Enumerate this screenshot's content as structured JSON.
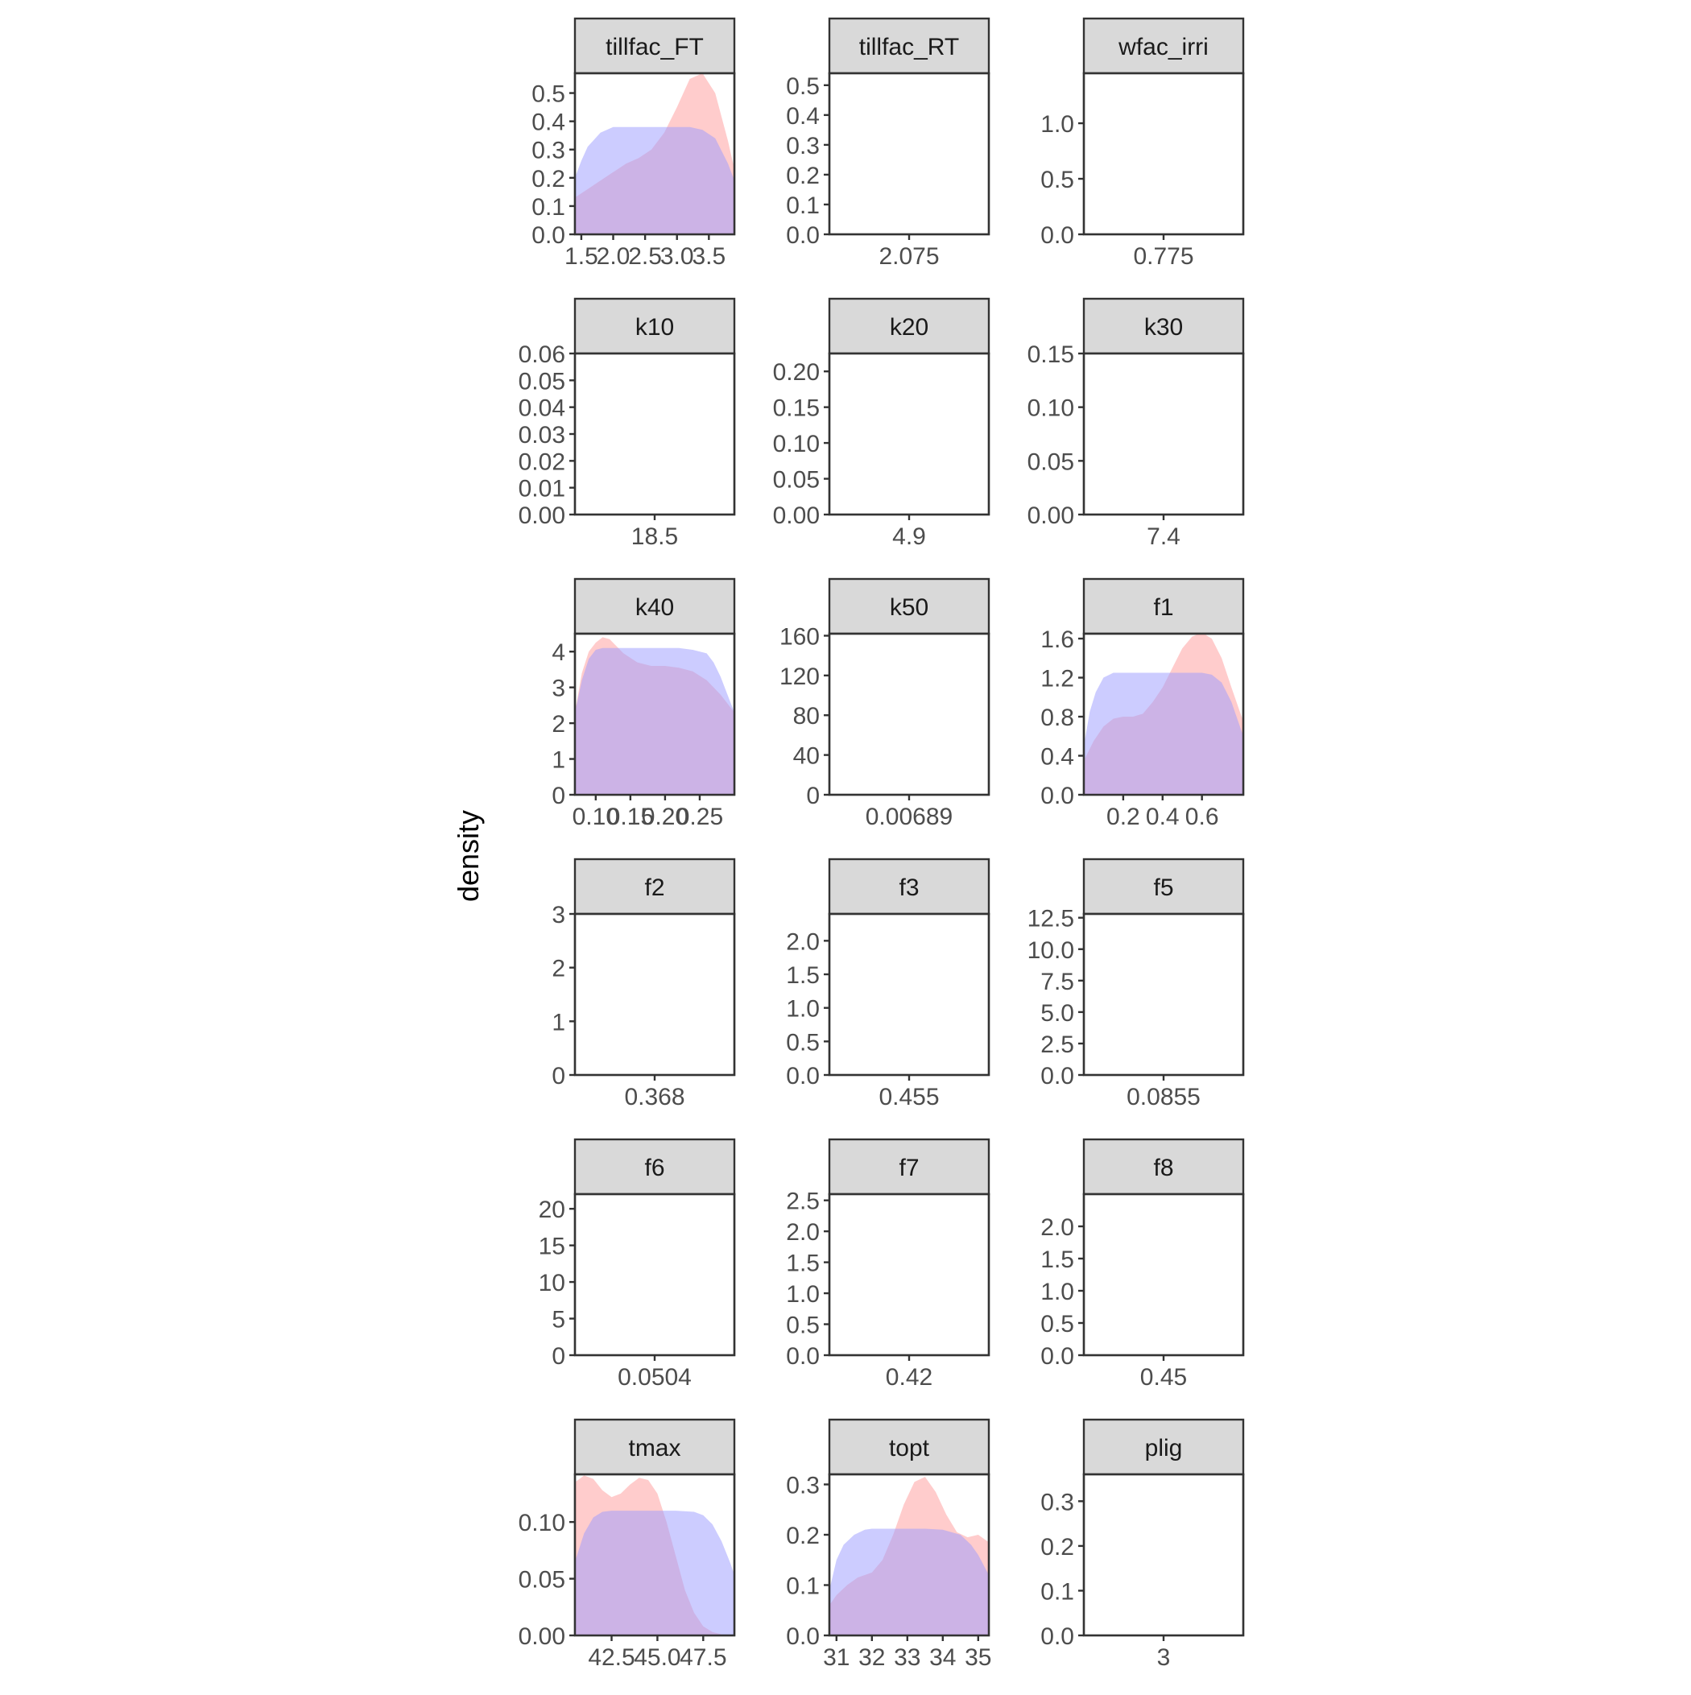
{
  "chart_data": {
    "type": "area",
    "subtype": "faceted-density",
    "ylabel": "density",
    "xlabel": "",
    "grid": false,
    "legend": "none",
    "series_colors": [
      "#ff9999",
      "#9999ff"
    ],
    "panels": [
      {
        "name": "tillfac_FT",
        "xlim": [
          1.4,
          3.9
        ],
        "ylim": [
          0,
          0.57
        ],
        "xticks": [
          1.5,
          2.0,
          2.5,
          3.0,
          3.5
        ],
        "xtick_labels": [
          "1.5",
          "2.0",
          "2.5",
          "3.0",
          "3.5"
        ],
        "yticks": [
          0,
          0.1,
          0.2,
          0.3,
          0.4,
          0.5
        ],
        "ytick_labels": [
          "0.0",
          "0.1",
          "0.2",
          "0.3",
          "0.4",
          "0.5"
        ],
        "series": [
          {
            "x": [
              1.4,
              1.6,
              1.8,
              2.0,
              2.2,
              2.4,
              2.6,
              2.8,
              3.0,
              3.2,
              3.4,
              3.6,
              3.8,
              3.9
            ],
            "y": [
              0.13,
              0.16,
              0.19,
              0.22,
              0.25,
              0.27,
              0.3,
              0.36,
              0.45,
              0.55,
              0.57,
              0.5,
              0.33,
              0.23
            ]
          },
          {
            "x": [
              1.4,
              1.5,
              1.6,
              1.8,
              2.0,
              2.2,
              2.4,
              2.6,
              2.8,
              3.0,
              3.2,
              3.4,
              3.6,
              3.8,
              3.9
            ],
            "y": [
              0.2,
              0.26,
              0.31,
              0.36,
              0.38,
              0.38,
              0.38,
              0.38,
              0.38,
              0.38,
              0.38,
              0.37,
              0.34,
              0.25,
              0.19
            ]
          }
        ]
      },
      {
        "name": "tillfac_RT",
        "xlim": [
          1,
          3.15
        ],
        "ylim": [
          0,
          0.54
        ],
        "xticks": [
          2.075
        ],
        "xtick_labels": [
          "2.075"
        ],
        "yticks": [
          0,
          0.1,
          0.2,
          0.3,
          0.4,
          0.5
        ],
        "ytick_labels": [
          "0.0",
          "0.1",
          "0.2",
          "0.3",
          "0.4",
          "0.5"
        ],
        "series": []
      },
      {
        "name": "wfac_irri",
        "xlim": [
          0.2,
          1.35
        ],
        "ylim": [
          0,
          1.45
        ],
        "xticks": [
          0.775
        ],
        "xtick_labels": [
          "0.775"
        ],
        "yticks": [
          0,
          0.5,
          1.0
        ],
        "ytick_labels": [
          "0.0",
          "0.5",
          "1.0"
        ],
        "series": []
      },
      {
        "name": "k10",
        "xlim": [
          17.5,
          19.5
        ],
        "ylim": [
          0,
          0.06
        ],
        "xticks": [
          18.5
        ],
        "xtick_labels": [
          "18.5"
        ],
        "yticks": [
          0,
          0.01,
          0.02,
          0.03,
          0.04,
          0.05,
          0.06
        ],
        "ytick_labels": [
          "0.00",
          "0.01",
          "0.02",
          "0.03",
          "0.04",
          "0.05",
          "0.06"
        ],
        "series": []
      },
      {
        "name": "k20",
        "xlim": [
          4.4,
          5.4
        ],
        "ylim": [
          0,
          0.225
        ],
        "xticks": [
          4.9
        ],
        "xtick_labels": [
          "4.9"
        ],
        "yticks": [
          0,
          0.05,
          0.1,
          0.15,
          0.2
        ],
        "ytick_labels": [
          "0.00",
          "0.05",
          "0.10",
          "0.15",
          "0.20"
        ],
        "series": []
      },
      {
        "name": "k30",
        "xlim": [
          6.9,
          7.9
        ],
        "ylim": [
          0,
          0.15
        ],
        "xticks": [
          7.4
        ],
        "xtick_labels": [
          "7.4"
        ],
        "yticks": [
          0,
          0.05,
          0.1,
          0.15
        ],
        "ytick_labels": [
          "0.00",
          "0.05",
          "0.10",
          "0.15"
        ],
        "series": []
      },
      {
        "name": "k40",
        "xlim": [
          0.07,
          0.3
        ],
        "ylim": [
          0,
          4.5
        ],
        "xticks": [
          0.1,
          0.15,
          0.2,
          0.25
        ],
        "xtick_labels": [
          "0.10",
          "0.15",
          "0.20",
          "0.25"
        ],
        "yticks": [
          0,
          1,
          2,
          3,
          4
        ],
        "ytick_labels": [
          "0",
          "1",
          "2",
          "3",
          "4"
        ],
        "series": [
          {
            "x": [
              0.07,
              0.08,
              0.09,
              0.1,
              0.11,
              0.12,
              0.13,
              0.14,
              0.16,
              0.18,
              0.2,
              0.22,
              0.24,
              0.26,
              0.28,
              0.3
            ],
            "y": [
              2.3,
              3.4,
              4.0,
              4.25,
              4.4,
              4.35,
              4.15,
              3.95,
              3.7,
              3.6,
              3.6,
              3.55,
              3.45,
              3.2,
              2.8,
              2.3
            ]
          },
          {
            "x": [
              0.07,
              0.08,
              0.09,
              0.1,
              0.11,
              0.12,
              0.14,
              0.16,
              0.18,
              0.2,
              0.22,
              0.24,
              0.26,
              0.27,
              0.28,
              0.29,
              0.3
            ],
            "y": [
              2.3,
              3.2,
              3.8,
              4.05,
              4.1,
              4.1,
              4.1,
              4.1,
              4.1,
              4.1,
              4.1,
              4.05,
              3.95,
              3.7,
              3.3,
              2.8,
              2.3
            ]
          }
        ]
      },
      {
        "name": "k50",
        "xlim": [
          -0.5,
          0.514
        ],
        "ylim": [
          0,
          162
        ],
        "xticks": [
          0.00689
        ],
        "xtick_labels": [
          "0.00689"
        ],
        "yticks": [
          0,
          40,
          80,
          120,
          160
        ],
        "ytick_labels": [
          "0",
          "40",
          "80",
          "120",
          "160"
        ],
        "series": []
      },
      {
        "name": "f1",
        "xlim": [
          0,
          0.81
        ],
        "ylim": [
          0,
          1.65
        ],
        "xticks": [
          0.2,
          0.4,
          0.6
        ],
        "xtick_labels": [
          "0.2",
          "0.4",
          "0.6"
        ],
        "yticks": [
          0,
          0.4,
          0.8,
          1.2,
          1.6
        ],
        "ytick_labels": [
          "0.0",
          "0.4",
          "0.8",
          "1.2",
          "1.6"
        ],
        "series": [
          {
            "x": [
              0,
              0.05,
              0.1,
              0.15,
              0.2,
              0.25,
              0.3,
              0.35,
              0.4,
              0.45,
              0.5,
              0.55,
              0.6,
              0.65,
              0.7,
              0.75,
              0.81
            ],
            "y": [
              0.35,
              0.55,
              0.7,
              0.78,
              0.8,
              0.8,
              0.83,
              0.95,
              1.1,
              1.3,
              1.5,
              1.62,
              1.66,
              1.6,
              1.4,
              1.1,
              0.75
            ]
          },
          {
            "x": [
              0,
              0.03,
              0.06,
              0.1,
              0.15,
              0.2,
              0.3,
              0.4,
              0.5,
              0.6,
              0.65,
              0.7,
              0.75,
              0.81
            ],
            "y": [
              0.5,
              0.85,
              1.05,
              1.2,
              1.25,
              1.25,
              1.25,
              1.25,
              1.25,
              1.25,
              1.23,
              1.15,
              0.95,
              0.6
            ]
          }
        ]
      },
      {
        "name": "f2",
        "xlim": [
          -0.132,
          0.868
        ],
        "ylim": [
          0,
          3
        ],
        "xticks": [
          0.368
        ],
        "xtick_labels": [
          "0.368"
        ],
        "yticks": [
          0,
          1,
          2,
          3
        ],
        "ytick_labels": [
          "0",
          "1",
          "2",
          "3"
        ],
        "series": []
      },
      {
        "name": "f3",
        "xlim": [
          -0.045,
          0.955
        ],
        "ylim": [
          0,
          2.4
        ],
        "xticks": [
          0.455
        ],
        "xtick_labels": [
          "0.455"
        ],
        "yticks": [
          0,
          0.5,
          1.0,
          1.5,
          2.0
        ],
        "ytick_labels": [
          "0.0",
          "0.5",
          "1.0",
          "1.5",
          "2.0"
        ],
        "series": []
      },
      {
        "name": "f5",
        "xlim": [
          -0.4145,
          0.5855
        ],
        "ylim": [
          0,
          12.8
        ],
        "xticks": [
          0.0855
        ],
        "xtick_labels": [
          "0.0855"
        ],
        "yticks": [
          0,
          2.5,
          5,
          7.5,
          10,
          12.5
        ],
        "ytick_labels": [
          "0.0",
          "2.5",
          "5.0",
          "7.5",
          "10.0",
          "12.5"
        ],
        "series": []
      },
      {
        "name": "f6",
        "xlim": [
          -0.4496,
          0.5504
        ],
        "ylim": [
          0,
          22
        ],
        "xticks": [
          0.0504
        ],
        "xtick_labels": [
          "0.0504"
        ],
        "yticks": [
          0,
          5,
          10,
          15,
          20
        ],
        "ytick_labels": [
          "0",
          "5",
          "10",
          "15",
          "20"
        ],
        "series": []
      },
      {
        "name": "f7",
        "xlim": [
          -0.08,
          0.92
        ],
        "ylim": [
          0,
          2.6
        ],
        "xticks": [
          0.42
        ],
        "xtick_labels": [
          "0.42"
        ],
        "yticks": [
          0,
          0.5,
          1.0,
          1.5,
          2.0,
          2.5
        ],
        "ytick_labels": [
          "0.0",
          "0.5",
          "1.0",
          "1.5",
          "2.0",
          "2.5"
        ],
        "series": []
      },
      {
        "name": "f8",
        "xlim": [
          -0.05,
          0.95
        ],
        "ylim": [
          0,
          2.5
        ],
        "xticks": [
          0.45
        ],
        "xtick_labels": [
          "0.45"
        ],
        "yticks": [
          0,
          0.5,
          1.0,
          1.5,
          2.0
        ],
        "ytick_labels": [
          "0.0",
          "0.5",
          "1.0",
          "1.5",
          "2.0"
        ],
        "series": []
      },
      {
        "name": "tmax",
        "xlim": [
          40.5,
          49.2
        ],
        "ylim": [
          0,
          0.142
        ],
        "xticks": [
          42.5,
          45.0,
          47.5
        ],
        "xtick_labels": [
          "42.5",
          "45.0",
          "47.5"
        ],
        "yticks": [
          0,
          0.05,
          0.1
        ],
        "ytick_labels": [
          "0.00",
          "0.05",
          "0.10"
        ],
        "series": [
          {
            "x": [
              40.5,
              41.0,
              41.5,
              42.0,
              42.5,
              43.0,
              43.5,
              44.0,
              44.5,
              45.0,
              45.5,
              46.0,
              46.5,
              47.0,
              47.5,
              48.0,
              48.5,
              49.0,
              49.2
            ],
            "y": [
              0.135,
              0.141,
              0.138,
              0.128,
              0.122,
              0.125,
              0.133,
              0.139,
              0.137,
              0.125,
              0.1,
              0.07,
              0.04,
              0.02,
              0.008,
              0.003,
              0.001,
              0.0,
              0.0
            ]
          },
          {
            "x": [
              40.5,
              41.0,
              41.5,
              42.0,
              42.5,
              43.0,
              44.0,
              45.0,
              46.0,
              47.0,
              47.5,
              48.0,
              48.5,
              49.0,
              49.2
            ],
            "y": [
              0.065,
              0.09,
              0.104,
              0.109,
              0.11,
              0.11,
              0.11,
              0.11,
              0.11,
              0.109,
              0.106,
              0.098,
              0.083,
              0.063,
              0.053
            ]
          }
        ]
      },
      {
        "name": "topt",
        "xlim": [
          30.8,
          35.3
        ],
        "ylim": [
          0,
          0.32
        ],
        "xticks": [
          31,
          32,
          33,
          34,
          35
        ],
        "xtick_labels": [
          "31",
          "32",
          "33",
          "34",
          "35"
        ],
        "series": [
          {
            "x": [
              30.8,
              31.0,
              31.3,
              31.6,
              32.0,
              32.3,
              32.6,
              32.9,
              33.2,
              33.5,
              33.8,
              34.1,
              34.4,
              34.7,
              35.0,
              35.3
            ],
            "y": [
              0.06,
              0.08,
              0.1,
              0.115,
              0.125,
              0.15,
              0.2,
              0.26,
              0.305,
              0.315,
              0.285,
              0.24,
              0.205,
              0.195,
              0.2,
              0.185
            ]
          },
          {
            "x": [
              30.8,
              31.0,
              31.2,
              31.5,
              31.8,
              32.0,
              32.5,
              33.0,
              33.5,
              34.0,
              34.5,
              34.8,
              35.0,
              35.3
            ],
            "y": [
              0.09,
              0.15,
              0.18,
              0.2,
              0.21,
              0.212,
              0.212,
              0.212,
              0.212,
              0.21,
              0.2,
              0.18,
              0.16,
              0.12
            ]
          }
        ],
        "yticks": [
          0,
          0.1,
          0.2,
          0.3
        ],
        "ytick_labels": [
          "0.0",
          "0.1",
          "0.2",
          "0.3"
        ]
      },
      {
        "name": "plig",
        "xlim": [
          2.5,
          3.5
        ],
        "ylim": [
          0,
          0.36
        ],
        "xticks": [
          3
        ],
        "xtick_labels": [
          "3"
        ],
        "yticks": [
          0,
          0.1,
          0.2,
          0.3
        ],
        "ytick_labels": [
          "0.0",
          "0.1",
          "0.2",
          "0.3"
        ],
        "series": []
      }
    ]
  }
}
